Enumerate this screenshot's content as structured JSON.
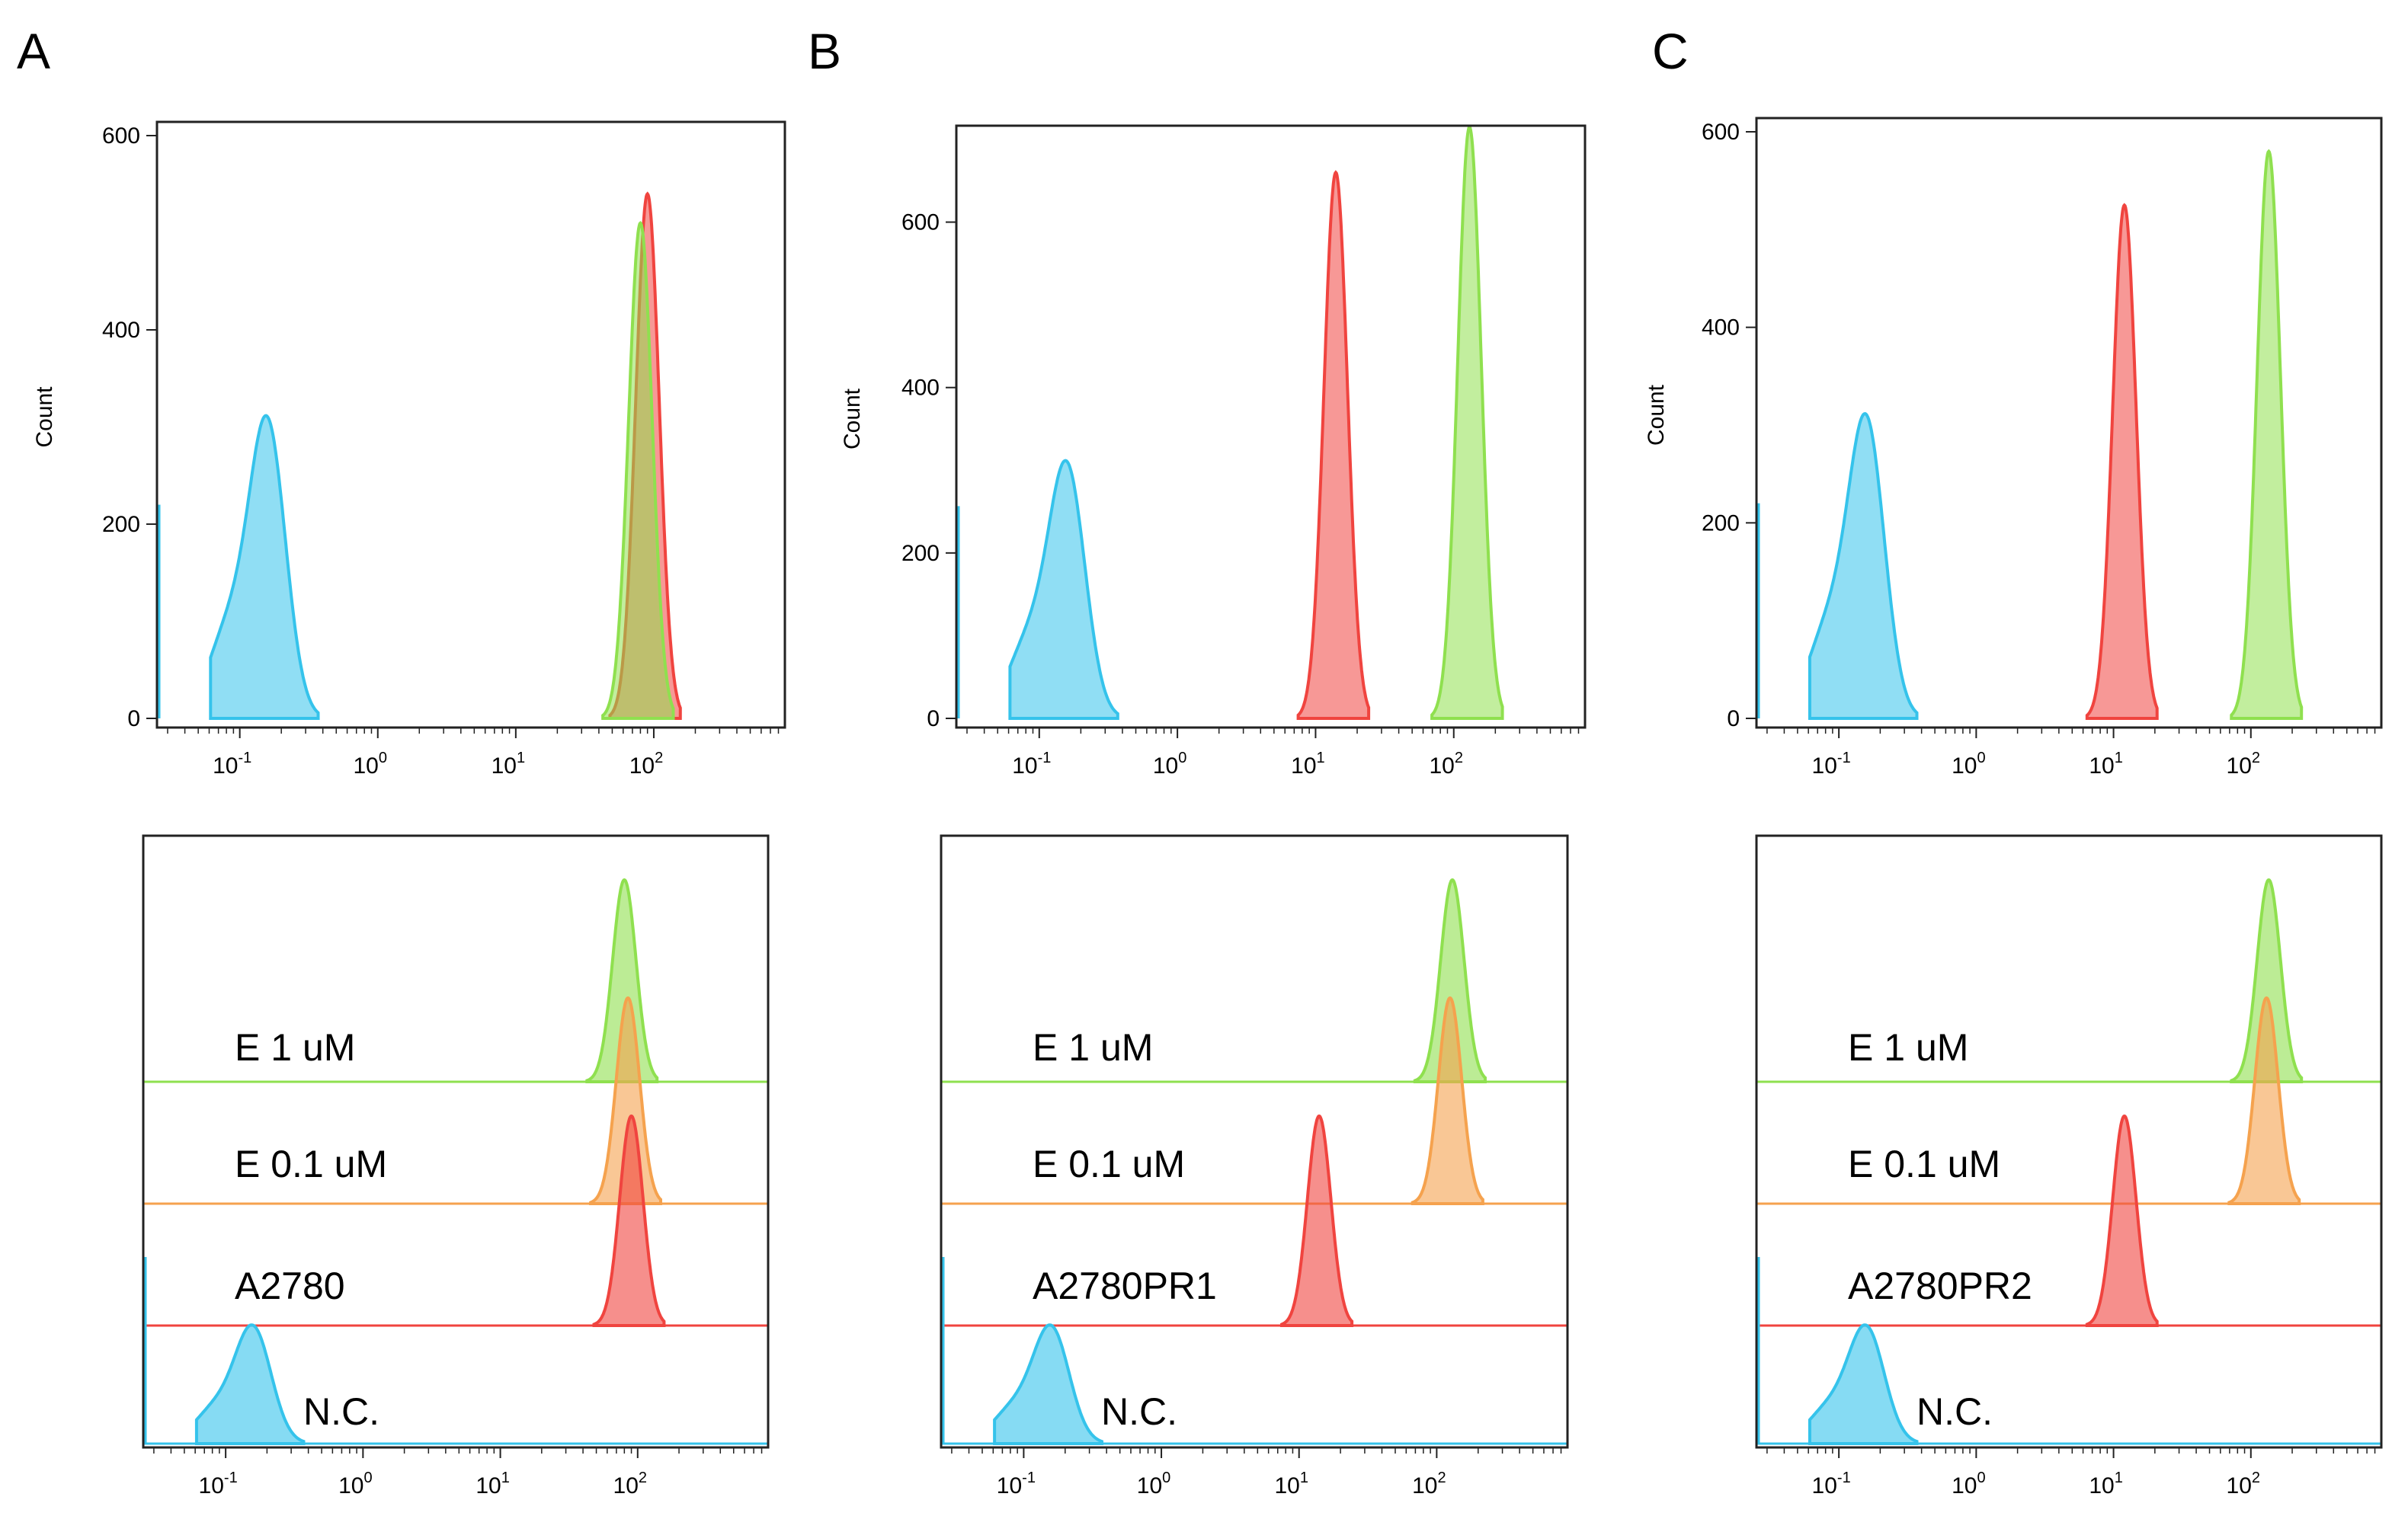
{
  "panel_labels": [
    "A",
    "B",
    "C"
  ],
  "colors": {
    "cyan": "#35c3eb",
    "red": "#f0443f",
    "green": "#8fe04f",
    "orange": "#f5a24e",
    "olive": "#a9a843"
  },
  "chart_data": [
    {
      "type": "area",
      "panel": "A",
      "ylabel": "Count",
      "ylim": [
        0,
        600
      ],
      "yticks": [
        "0",
        "200",
        "400",
        "600"
      ],
      "xscale": "log",
      "xtick_labels": [
        "10^-1",
        "10^0",
        "10^1",
        "10^2"
      ],
      "series": [
        {
          "name": "N.C.",
          "color": "cyan",
          "peak_x": 0.16,
          "peak_count": 290
        },
        {
          "name": "A2780",
          "color": "red",
          "peak_x": 90,
          "peak_count": 540
        },
        {
          "name": "E 1 uM",
          "color": "green",
          "peak_x": 80,
          "peak_count": 510
        }
      ],
      "overlay": {
        "rows": [
          {
            "label": "E 1 uM",
            "color": "green",
            "peak_x": 80
          },
          {
            "label": "E 0.1 uM",
            "color": "orange",
            "peak_x": 85
          },
          {
            "label": "A2780",
            "color": "red",
            "peak_x": 90
          },
          {
            "label": "N.C.",
            "color": "cyan",
            "peak_x": 0.16
          }
        ],
        "xtick_labels": [
          "10^-1",
          "10^0",
          "10^1",
          "10^2"
        ]
      }
    },
    {
      "type": "area",
      "panel": "B",
      "ylabel": "Count",
      "ylim": [
        0,
        700
      ],
      "yticks": [
        "0",
        "200",
        "400",
        "600"
      ],
      "xscale": "log",
      "xtick_labels": [
        "10^-1",
        "10^0",
        "10^1",
        "10^2"
      ],
      "series": [
        {
          "name": "N.C.",
          "color": "cyan",
          "peak_x": 0.16,
          "peak_count": 290
        },
        {
          "name": "A2780PR1",
          "color": "red",
          "peak_x": 14,
          "peak_count": 660
        },
        {
          "name": "E 1 uM",
          "color": "green",
          "peak_x": 130,
          "peak_count": 715
        }
      ],
      "overlay": {
        "rows": [
          {
            "label": "E 1 uM",
            "color": "green",
            "peak_x": 130
          },
          {
            "label": "E 0.1 uM",
            "color": "orange",
            "peak_x": 125
          },
          {
            "label": "A2780PR1",
            "color": "red",
            "peak_x": 14
          },
          {
            "label": "N.C.",
            "color": "cyan",
            "peak_x": 0.16
          }
        ],
        "xtick_labels": [
          "10^-1",
          "10^0",
          "10^1",
          "10^2"
        ]
      }
    },
    {
      "type": "area",
      "panel": "C",
      "ylabel": "Count",
      "ylim": [
        0,
        600
      ],
      "yticks": [
        "0",
        "200",
        "400",
        "600"
      ],
      "xscale": "log",
      "xtick_labels": [
        "10^-1",
        "10^0",
        "10^1",
        "10^2"
      ],
      "series": [
        {
          "name": "N.C.",
          "color": "cyan",
          "peak_x": 0.16,
          "peak_count": 290
        },
        {
          "name": "A2780PR2",
          "color": "red",
          "peak_x": 12,
          "peak_count": 525
        },
        {
          "name": "E 1 uM",
          "color": "green",
          "peak_x": 135,
          "peak_count": 580
        }
      ],
      "overlay": {
        "rows": [
          {
            "label": "E 1 uM",
            "color": "green",
            "peak_x": 135
          },
          {
            "label": "E 0.1 uM",
            "color": "orange",
            "peak_x": 130
          },
          {
            "label": "A2780PR2",
            "color": "red",
            "peak_x": 12
          },
          {
            "label": "N.C.",
            "color": "cyan",
            "peak_x": 0.16
          }
        ],
        "xtick_labels": [
          "10^-1",
          "10^0",
          "10^1",
          "10^2"
        ]
      }
    }
  ]
}
